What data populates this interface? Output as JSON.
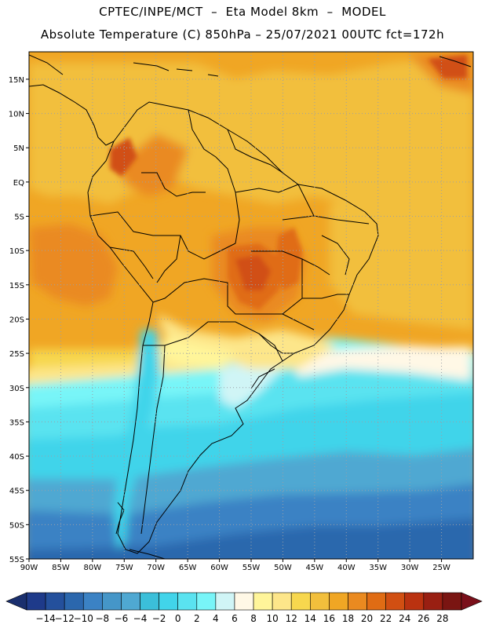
{
  "title_line_1": "CPTEC/INPE/MCT  –  Eta Model 8km  –  MODEL",
  "title_line_2": "Absolute Temperature (C) 850hPa – 25/07/2021 00UTC fct=172h",
  "map": {
    "lat_labels": [
      "15N",
      "10N",
      "5N",
      "EQ",
      "5S",
      "10S",
      "15S",
      "20S",
      "25S",
      "30S",
      "35S",
      "40S",
      "45S",
      "50S",
      "55S"
    ],
    "lon_labels": [
      "90W",
      "85W",
      "80W",
      "75W",
      "70W",
      "65W",
      "60W",
      "55W",
      "50W",
      "45W",
      "40W",
      "35W",
      "30W",
      "25W"
    ],
    "grid": true,
    "extent": {
      "lon_min": -90,
      "lon_max": -20,
      "lat_min": -55,
      "lat_max": 19
    }
  },
  "colorbar": {
    "labels": [
      "-14",
      "-12",
      "-10",
      "-8",
      "-6",
      "-4",
      "-2",
      "0",
      "2",
      "4",
      "6",
      "8",
      "10",
      "12",
      "14",
      "16",
      "18",
      "20",
      "22",
      "24",
      "26",
      "28"
    ],
    "colors": [
      "#1e3a8a",
      "#24509c",
      "#2b67ad",
      "#3b82c4",
      "#4596c8",
      "#4fa8d2",
      "#3bbfd9",
      "#41d4ea",
      "#5ae3f0",
      "#78f5f8",
      "#d0f5f6",
      "#fff8e6",
      "#fff59a",
      "#fde68a",
      "#f7d74e",
      "#f2bf3c",
      "#f0a624",
      "#ea8a20",
      "#e06c14",
      "#d14f12",
      "#ba3210",
      "#991f12",
      "#7a1512"
    ],
    "left_arrow_color": "#1a2f6e",
    "right_arrow_color": "#7a0f1a"
  }
}
